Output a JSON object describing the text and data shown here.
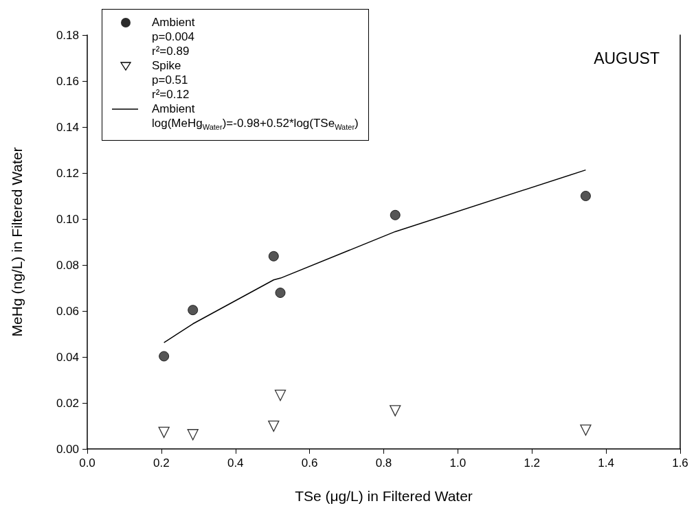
{
  "chart_data": {
    "type": "scatter",
    "title": "AUGUST",
    "xlabel": "TSe (μg/L) in Filtered Water",
    "ylabel": "MeHg (ng/L) in Filtered Water",
    "annotations": [
      "p=0.004",
      "r²=0.89",
      "p=0.51",
      "r²=0.12",
      "log(MeHg$_{Water}$)=-0.98+0.52*log(TSe$_{Water}$)"
    ],
    "series": [
      {
        "name": "Ambient",
        "type": "scatter",
        "marker": "circle",
        "color": "#2b2b2b",
        "x": [
          0.207,
          0.285,
          0.503,
          0.521,
          0.831,
          1.345
        ],
        "values": [
          0.0403,
          0.0604,
          0.0838,
          0.0679,
          0.1017,
          0.11
        ]
      },
      {
        "name": "Spike",
        "type": "scatter",
        "marker": "triangle",
        "color": "#000000",
        "x": [
          0.207,
          0.285,
          0.503,
          0.521,
          0.831,
          1.345
        ],
        "values": [
          0.0072,
          0.0062,
          0.0099,
          0.0233,
          0.0166,
          0.0082
        ]
      },
      {
        "name": "Ambient",
        "type": "line",
        "marker": "none",
        "color": "#000000",
        "x": [
          0.207,
          0.285,
          0.503,
          0.522,
          0.831,
          1.345
        ],
        "values": [
          0.0462,
          0.0544,
          0.0735,
          0.0743,
          0.0945,
          0.1213
        ]
      }
    ],
    "xlim": [
      0,
      1.6
    ],
    "xticks": [
      {
        "value": 0,
        "label": "0.0"
      },
      {
        "value": 0.2,
        "label": "0.2"
      },
      {
        "value": 0.4,
        "label": "0.4"
      },
      {
        "value": 0.6,
        "label": "0.6"
      },
      {
        "value": 0.8,
        "label": "0.8"
      },
      {
        "value": 1,
        "label": "1.0"
      },
      {
        "value": 1.2,
        "label": "1.2"
      },
      {
        "value": 1.4,
        "label": "1.4"
      },
      {
        "value": 1.6,
        "label": "1.6"
      }
    ],
    "ylim": [
      0,
      0.18
    ],
    "yticks": [
      {
        "value": 0,
        "label": "0.00"
      },
      {
        "value": 0.02,
        "label": "0.02"
      },
      {
        "value": 0.04,
        "label": "0.04"
      },
      {
        "value": 0.06,
        "label": "0.06"
      },
      {
        "value": 0.08,
        "label": "0.08"
      },
      {
        "value": 0.1,
        "label": "0.10"
      },
      {
        "value": 0.12,
        "label": "0.12"
      },
      {
        "value": 0.14,
        "label": "0.14"
      },
      {
        "value": 0.16,
        "label": "0.16"
      },
      {
        "value": 0.18,
        "label": "0.18"
      }
    ],
    "grid": false,
    "legend": "top left"
  }
}
